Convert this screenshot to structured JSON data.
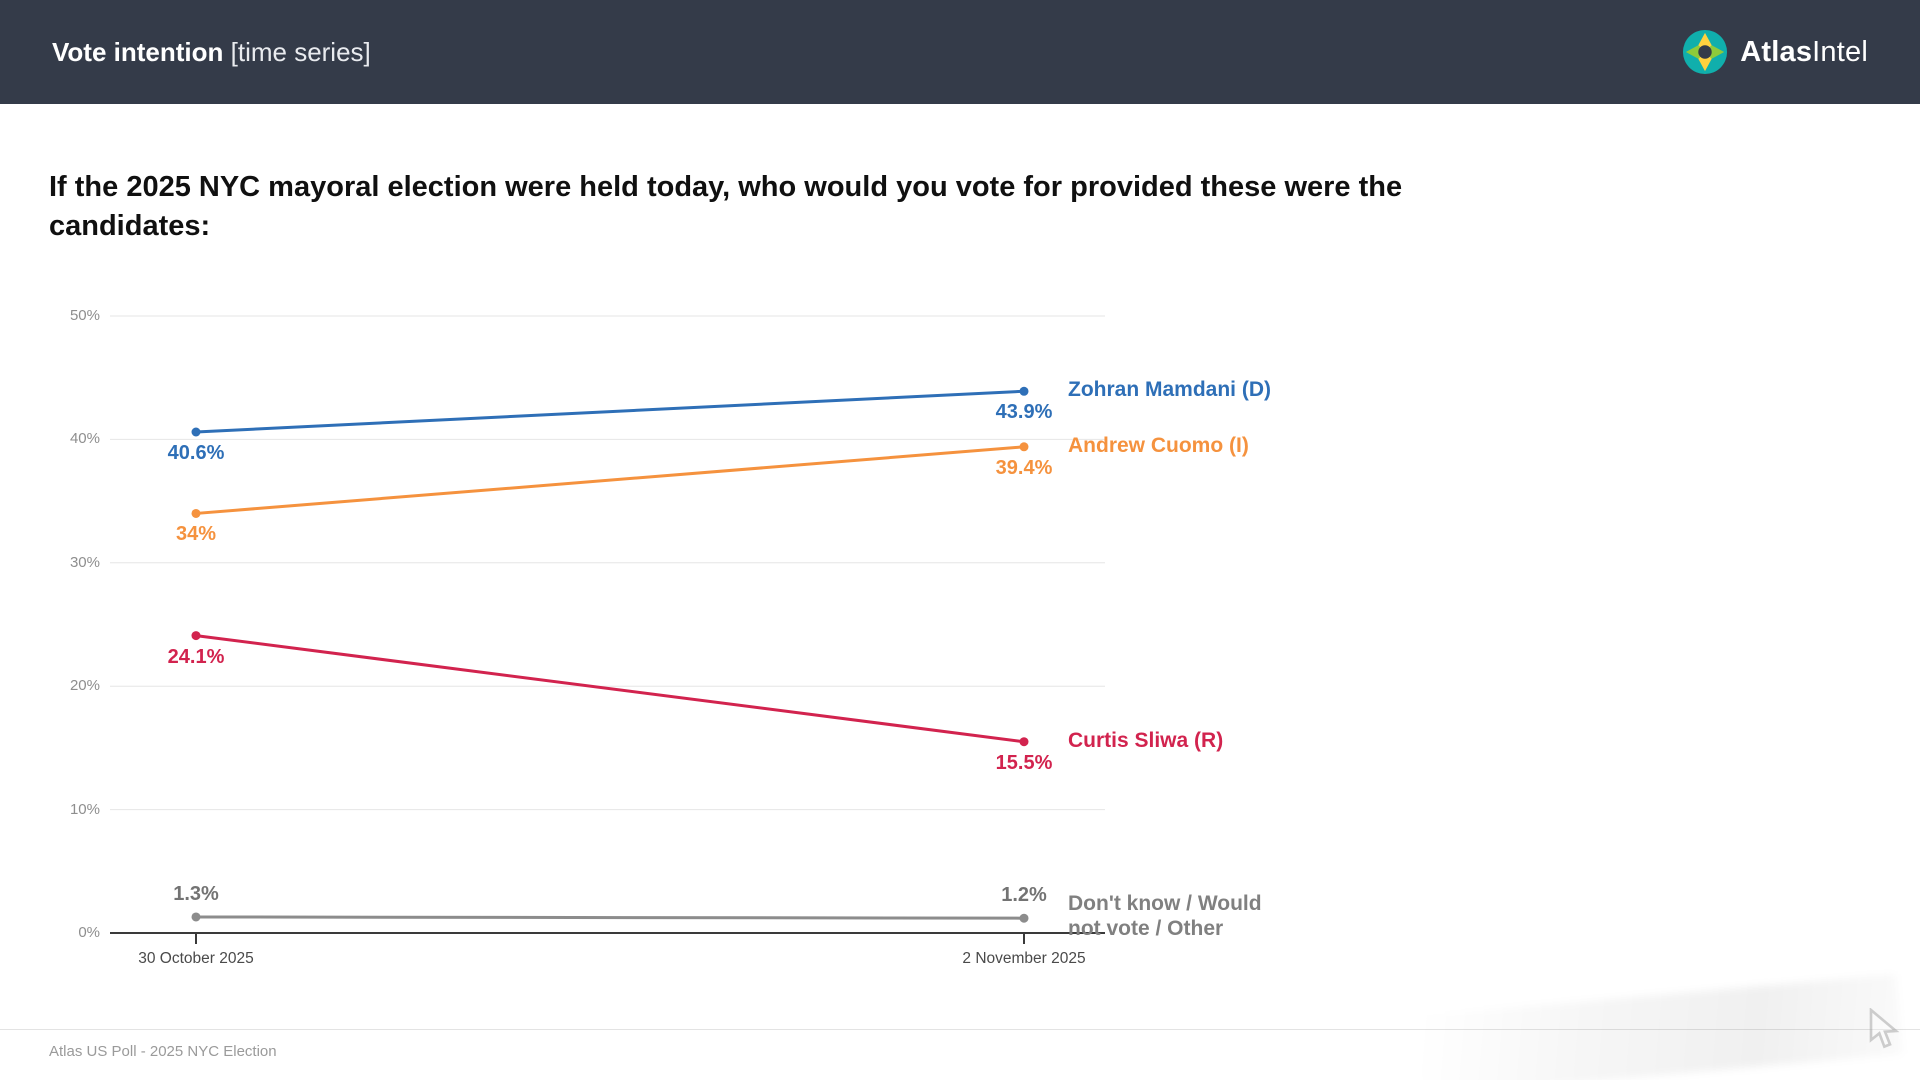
{
  "header": {
    "title_bold": "Vote intention",
    "title_light": "[time series]",
    "brand_bold": "Atlas",
    "brand_light": "Intel",
    "bg_color": "#343B49"
  },
  "question": {
    "text": "If the 2025 NYC mayoral election were held today, who would you vote for provided these were the candidates:"
  },
  "footer": {
    "source": "Atlas US Poll - 2025 NYC Election"
  },
  "chart_data": {
    "type": "line",
    "title": "Vote intention [time series]",
    "x": [
      "30 October 2025",
      "2 November 2025"
    ],
    "series": [
      {
        "name": "Zohran Mamdani (D)",
        "values": [
          40.6,
          43.9
        ],
        "labels": [
          "40.6%",
          "43.9%"
        ],
        "color": "#2E6FB7",
        "label_position": "below"
      },
      {
        "name": "Andrew Cuomo (I)",
        "values": [
          34,
          39.4
        ],
        "labels": [
          "34%",
          "39.4%"
        ],
        "color": "#F5923E",
        "label_position": "below"
      },
      {
        "name": "Curtis Sliwa (R)",
        "values": [
          24.1,
          15.5
        ],
        "labels": [
          "24.1%",
          "15.5%"
        ],
        "color": "#D2234E",
        "label_position": "below"
      },
      {
        "name": "Don't know / Would not vote / Other",
        "values": [
          1.3,
          1.2
        ],
        "labels": [
          "1.3%",
          "1.2%"
        ],
        "color": "#8C8C8C",
        "name_color": "#808080",
        "value_label_color": "#737373",
        "label_position": "above"
      }
    ],
    "ylim": [
      0,
      50
    ],
    "yticks": [
      0,
      10,
      20,
      30,
      40,
      50
    ],
    "ytick_labels": [
      "0%",
      "10%",
      "20%",
      "30%",
      "40%",
      "50%"
    ],
    "grid": true,
    "legend_position": "right-of-last-point",
    "colors": {
      "gridline": "#e6e6e6",
      "axis": "#3a3a3a",
      "ytick_text": "#8e8e8e",
      "xtick_text": "#4a4a4a"
    }
  }
}
